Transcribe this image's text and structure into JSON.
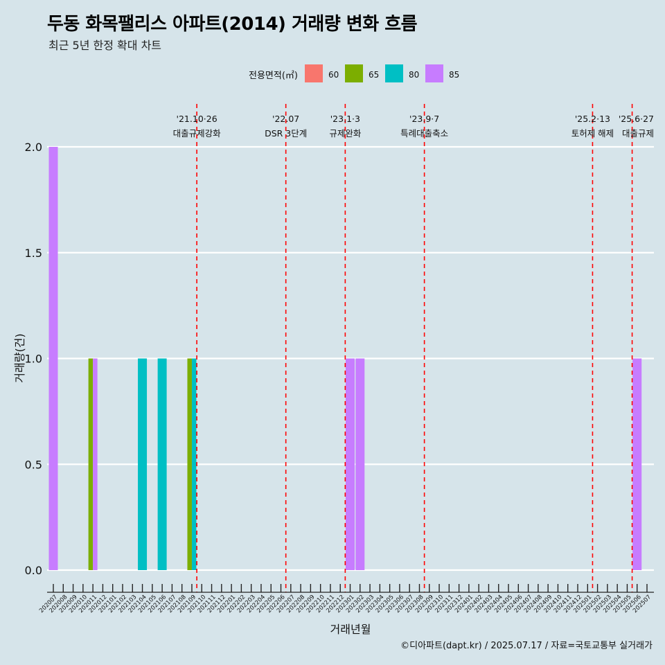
{
  "title": "두동 화목팰리스 아파트(2014) 거래량 변화 흐름",
  "subtitle": "최근 5년 한정 확대 차트",
  "caption": "©디아파트(dapt.kr) / 2025.07.17 / 자료=국토교통부 실거래가",
  "chart_data": {
    "type": "bar",
    "xlabel": "거래년월",
    "ylabel": "거래량(건)",
    "ylim": [
      0,
      2
    ],
    "yticks": [
      "0.0",
      "0.5",
      "1.0",
      "1.5",
      "2.0"
    ],
    "ytick_values": [
      0,
      0.5,
      1,
      1.5,
      2
    ],
    "grid": true,
    "legend_position": "top",
    "legend_title": "전용면적(㎡)",
    "categories": [
      "202007",
      "202008",
      "202009",
      "202010",
      "202011",
      "202012",
      "202101",
      "202102",
      "202103",
      "202104",
      "202105",
      "202106",
      "202107",
      "202108",
      "202109",
      "202110",
      "202111",
      "202112",
      "202201",
      "202202",
      "202203",
      "202204",
      "202205",
      "202206",
      "202207",
      "202208",
      "202209",
      "202210",
      "202211",
      "202212",
      "202301",
      "202302",
      "202303",
      "202304",
      "202305",
      "202306",
      "202307",
      "202308",
      "202309",
      "202310",
      "202311",
      "202312",
      "202401",
      "202402",
      "202403",
      "202404",
      "202405",
      "202406",
      "202407",
      "202408",
      "202409",
      "202410",
      "202411",
      "202412",
      "202501",
      "202502",
      "202503",
      "202504",
      "202505",
      "202506",
      "202507"
    ],
    "series": [
      {
        "name": "60",
        "color": "#f8766d",
        "points": []
      },
      {
        "name": "65",
        "color": "#7cae00",
        "points": [
          {
            "x": "202011",
            "y": 1
          },
          {
            "x": "202109",
            "y": 1
          }
        ]
      },
      {
        "name": "80",
        "color": "#00bfc4",
        "points": [
          {
            "x": "202104",
            "y": 1
          },
          {
            "x": "202106",
            "y": 1
          },
          {
            "x": "202109",
            "y": 1
          }
        ]
      },
      {
        "name": "85",
        "color": "#c77cff",
        "points": [
          {
            "x": "202007",
            "y": 2
          },
          {
            "x": "202011",
            "y": 1
          },
          {
            "x": "202301",
            "y": 1
          },
          {
            "x": "202302",
            "y": 1
          },
          {
            "x": "202506",
            "y": 1
          }
        ]
      }
    ],
    "annotations": [
      {
        "x": "202110",
        "date": "'21.10·26",
        "label": "대출규제강화"
      },
      {
        "x": "202207",
        "date": "'22.07",
        "label": "DSR 3단계"
      },
      {
        "x": "202301",
        "date": "'23.1·3",
        "label": "규제완화"
      },
      {
        "x": "202309",
        "date": "'23.9·7",
        "label": "특례대출축소"
      },
      {
        "x": "202502",
        "date": "'25.2·13",
        "label": "토허제 해제"
      },
      {
        "x": "202506",
        "date": "'25.6·27",
        "label": "대출규제"
      }
    ]
  }
}
